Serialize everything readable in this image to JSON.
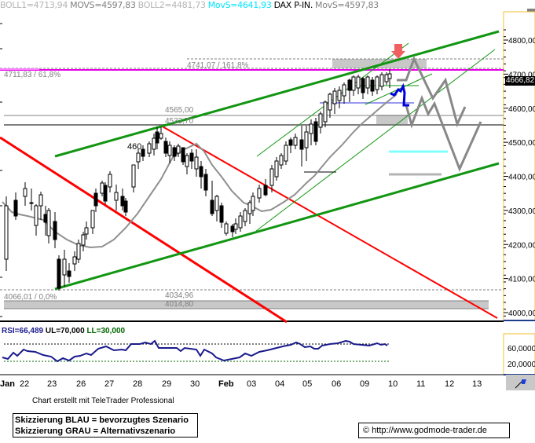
{
  "header": {
    "indicators": [
      {
        "text": "BOLL1=4713,94",
        "color": "#b4b4b4"
      },
      {
        "text": "MOVS=4597,83",
        "color": "#808080"
      },
      {
        "text": "BOLL2=4481,73",
        "color": "#b4b4b4"
      },
      {
        "text": "MovS=4641,93",
        "color": "#00e5ff"
      },
      {
        "text": "DAX P-IN.",
        "color": "#000000"
      },
      {
        "text": "MovS=4597,83",
        "color": "#808080"
      }
    ]
  },
  "price_tag": "4666,82",
  "annotations": {
    "fib_161": "4741,07 / 161,8%",
    "fib_61": "4711,83 / 61,8%",
    "level_4565": "4565,00",
    "level_4533": "4533,70",
    "label_460": "460",
    "fib_0": "4066,01 / 0,0%",
    "level_4034": "4034,96",
    "level_4014": "4014,80"
  },
  "rsi": {
    "label": "RSI=66,489",
    "ul": "UL=70,000",
    "ll": "LL=30,000",
    "ticks": [
      "60,0000",
      "20,0000"
    ]
  },
  "footer": {
    "credit": "Chart erstellt mit TeleTrader Professional",
    "legend_line1": "Skizzierung BLAU = bevorzugtes Szenario",
    "legend_line2": "Skizzierung GRAU = Alternativszenario",
    "copyright": "© http://www.godmode-trader.de"
  },
  "colors": {
    "support_channel": "#129612",
    "downtrend": "#ff0000",
    "fib_magenta": "#e600e6",
    "preferred_scenario": "#0000dd",
    "alternative_scenario": "#888888",
    "target_arrow": "#f06060",
    "cyan_level": "#80ffff",
    "rsi_line": "#000080",
    "axis_frame": "#f0c030"
  },
  "chart_data": {
    "type": "candlestick",
    "title": "DAX P-IN.",
    "xlabel": "",
    "ylabel": "",
    "ylim": [
      3980,
      4840
    ],
    "y_ticks": [
      "4800,00",
      "4700,00",
      "4600,00",
      "4500,00",
      "4400,00",
      "4300,00",
      "4200,00",
      "4100,00",
      "4000,00"
    ],
    "x_ticks": [
      "Jan",
      "22",
      "23",
      "26",
      "27",
      "28",
      "29",
      "30",
      "Feb",
      "03",
      "04",
      "05",
      "06",
      "09",
      "10",
      "11",
      "12",
      "13"
    ],
    "last_price": 4666.82,
    "indicators": {
      "BOLL1": 4713.94,
      "MOVS": 4597.83,
      "BOLL2": 4481.73,
      "MovS_fast": 4641.93
    },
    "horizontal_levels": [
      {
        "value": 4741.07,
        "label": "4741,07 / 161,8%"
      },
      {
        "value": 4711.83,
        "label": "4711,83 / 61,8%"
      },
      {
        "value": 4565.0,
        "label": "4565,00"
      },
      {
        "value": 4533.7,
        "label": "4533,70"
      },
      {
        "value": 4066.01,
        "label": "4066,01 / 0,0%"
      },
      {
        "value": 4034.96,
        "label": "4034,96"
      },
      {
        "value": 4014.8,
        "label": "4014,80"
      }
    ],
    "rsi": {
      "value": 66.489,
      "upper": 70,
      "lower": 30,
      "y_ticks": [
        "60,0000",
        "20,0000"
      ]
    },
    "legend": [
      "Skizzierung BLAU = bevorzugtes Szenario",
      "Skizzierung GRAU = Alternativszenario"
    ]
  }
}
